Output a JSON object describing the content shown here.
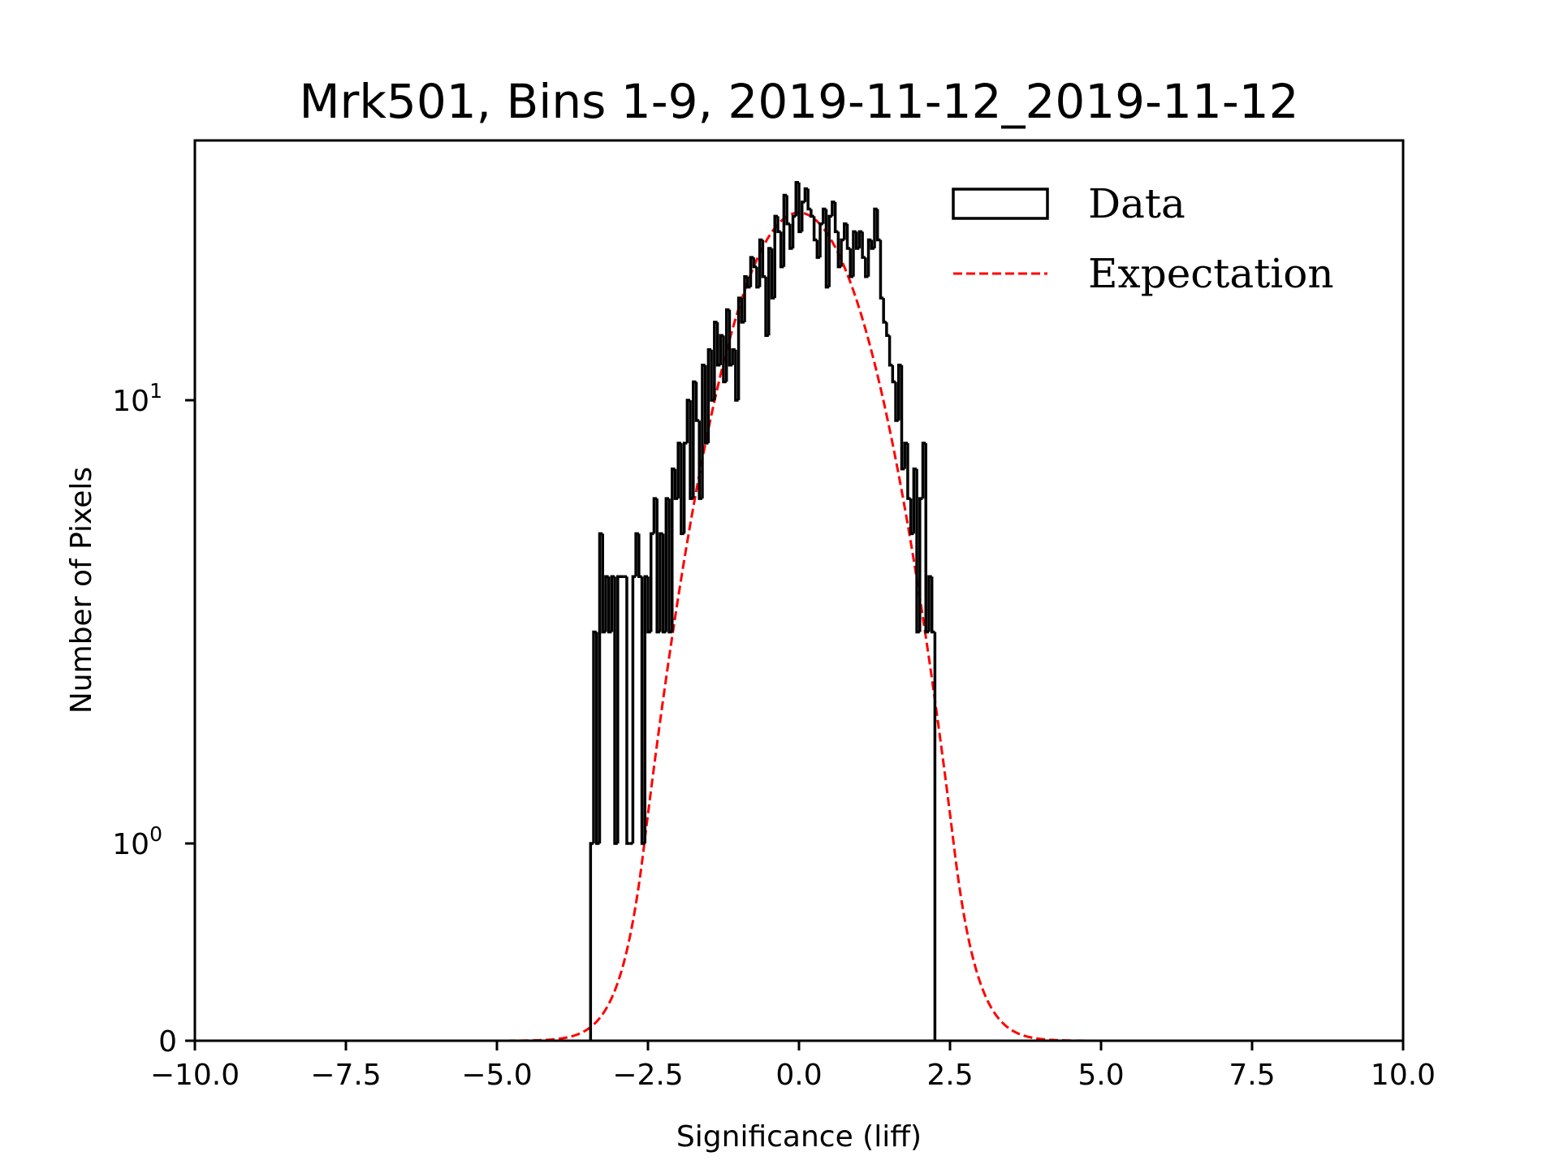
{
  "chart_data": {
    "type": "bar",
    "histtype": "step",
    "title": "Mrk501, Bins 1-9, 2019-11-12_2019-11-12",
    "xlabel": "Significance (liff)",
    "ylabel": "Number of Pixels",
    "xlim": [
      -10,
      10
    ],
    "ylim": [
      0,
      38.5
    ],
    "yscale": "symlog",
    "linthresh": 1,
    "xticks": [
      -10,
      -7.5,
      -5,
      -2.5,
      0,
      2.5,
      5,
      7.5,
      10
    ],
    "xtick_labels": [
      "−10.0",
      "−7.5",
      "−5.0",
      "−2.5",
      "0.0",
      "2.5",
      "5.0",
      "7.5",
      "10.0"
    ],
    "yticks": [
      {
        "value": 0,
        "base": "0",
        "exp": ""
      },
      {
        "value": 1,
        "base": "10",
        "exp": "0"
      },
      {
        "value": 10,
        "base": "10",
        "exp": "1"
      }
    ],
    "grid": false,
    "legend": {
      "position": "top-right",
      "entries": [
        {
          "label": "Data",
          "style": "step-outline",
          "color": "#000000"
        },
        {
          "label": "Expectation",
          "style": "dashed",
          "color": "#ff0000"
        }
      ]
    },
    "series": [
      {
        "name": "Data",
        "color": "#000000",
        "bin_start": -3.45,
        "bin_width": 0.05,
        "counts": [
          1,
          3,
          1,
          5,
          3,
          4,
          3,
          4,
          1,
          4,
          4,
          4,
          1,
          1,
          4,
          5,
          4,
          1,
          4,
          3,
          5,
          6,
          3,
          5,
          3,
          6,
          3,
          7,
          6,
          8,
          5,
          8,
          10,
          6,
          11,
          9,
          6,
          12,
          8,
          13,
          10,
          15,
          12,
          14,
          11,
          16,
          12,
          13,
          10,
          17,
          15,
          19,
          18,
          21,
          20,
          18,
          23,
          19,
          14,
          22,
          17,
          26,
          24,
          20,
          29,
          25,
          22,
          26,
          31,
          24,
          28,
          30,
          27,
          26,
          23,
          21,
          25,
          27,
          18,
          26,
          28,
          24,
          20,
          23,
          25,
          22,
          19,
          24,
          22,
          24,
          21,
          19,
          23,
          22,
          27,
          23,
          17,
          15,
          14,
          12,
          11,
          9,
          12,
          7,
          8,
          6,
          5,
          7,
          3,
          6,
          8,
          3,
          4,
          3
        ]
      },
      {
        "name": "Expectation",
        "color": "#ff0000",
        "model": "gaussian",
        "amplitude": 26.5,
        "mean": 0.0,
        "sigma": 1.0
      }
    ]
  }
}
